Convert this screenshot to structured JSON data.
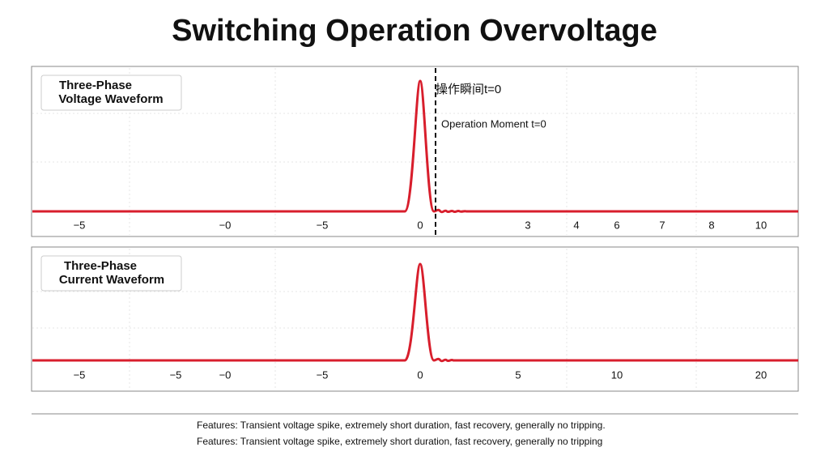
{
  "title": "Switching Operation Overvoltage",
  "panels": [
    {
      "label_lines": [
        "Three-Phase",
        "Voltage Waveform"
      ],
      "ticks": [
        "−5",
        "−0",
        "−5",
        "0",
        "3",
        "4",
        "6",
        "7",
        "8",
        "10"
      ],
      "annotations": [
        "操作瞬间t=0",
        "Operation Moment t=0"
      ]
    },
    {
      "label_lines": [
        "Three-Phase",
        "Current Waveform"
      ],
      "ticks": [
        "−5",
        "−5",
        "−0",
        "−5",
        "0",
        "5",
        "10",
        "20"
      ]
    }
  ],
  "footer": [
    "Features: Transient voltage spike, extremely short duration, fast recovery, generally no tripping.",
    "Features: Transient voltage spike, extremely short duration, fast recovery, generally no tripping"
  ]
}
